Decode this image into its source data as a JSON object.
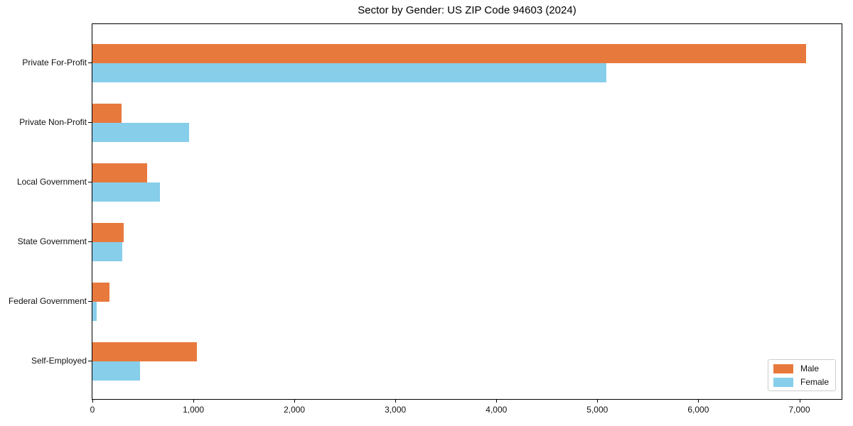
{
  "title": "Sector by Gender: US ZIP Code 94603 (2024)",
  "legend": {
    "male_label": "Male",
    "female_label": "Female"
  },
  "colors": {
    "male": "#e8793d",
    "female": "#87ceeb",
    "spine": "#000000",
    "legend_border": "#cccccc"
  },
  "chart_data": {
    "type": "bar",
    "orientation": "horizontal",
    "title": "Sector by Gender: US ZIP Code 94603 (2024)",
    "xlabel": "",
    "ylabel": "",
    "categories": [
      "Private For-Profit",
      "Private Non-Profit",
      "Local Government",
      "State Government",
      "Federal Government",
      "Self-Employed"
    ],
    "series": [
      {
        "name": "Male",
        "color": "#e8793d",
        "values": [
          7065,
          290,
          540,
          310,
          170,
          1035
        ]
      },
      {
        "name": "Female",
        "color": "#87ceeb",
        "values": [
          5090,
          960,
          665,
          295,
          40,
          470
        ]
      }
    ],
    "xlim": [
      0,
      7419
    ],
    "x_ticks": [
      0,
      1000,
      2000,
      3000,
      4000,
      5000,
      6000,
      7000
    ],
    "x_tick_labels": [
      "0",
      "1,000",
      "2,000",
      "3,000",
      "4,000",
      "5,000",
      "6,000",
      "7,000"
    ],
    "grid": false,
    "legend_position": "lower right"
  }
}
